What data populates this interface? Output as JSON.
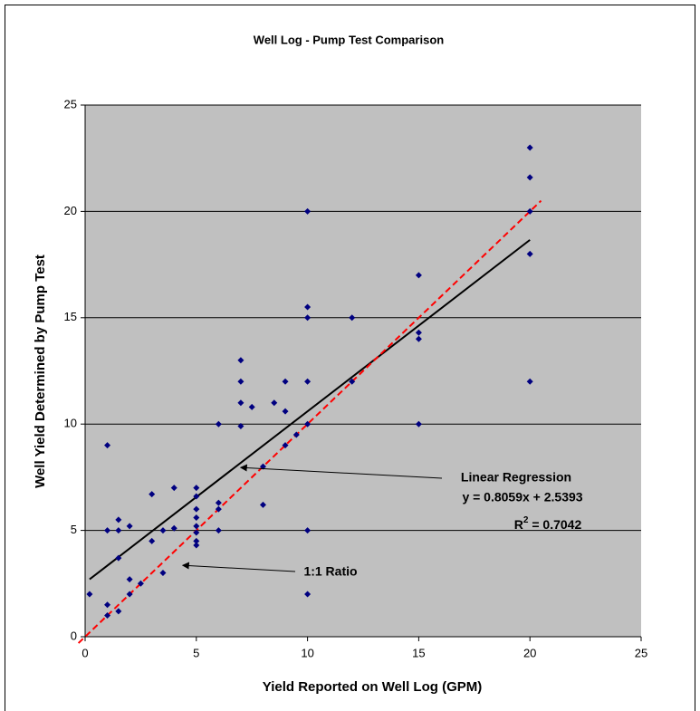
{
  "chart_data": {
    "type": "scatter",
    "title": "Well Log - Pump Test Comparison",
    "x_label": "Yield Reported on Well Log (GPM)",
    "y_label": "Well Yield Determined by Pump Test",
    "xlim": [
      0,
      25
    ],
    "xticks": [
      0,
      5,
      10,
      15,
      20,
      25
    ],
    "ylim": [
      0,
      25
    ],
    "yticks": [
      0,
      5,
      10,
      15,
      20,
      25
    ],
    "grid": true,
    "series": [
      {
        "color": "#000080",
        "x": [
          0.2,
          1,
          1,
          1,
          1,
          1.5,
          1.5,
          1.5,
          1.5,
          2,
          2,
          2,
          2.5,
          3,
          3,
          3.5,
          3.5,
          4,
          4,
          5,
          5,
          5,
          5,
          5,
          5,
          5,
          5,
          6,
          6,
          6,
          6,
          7,
          7,
          7,
          7,
          7.5,
          8,
          8,
          8.5,
          9,
          9,
          9,
          9.5,
          10,
          10,
          10,
          10,
          10,
          10,
          10,
          12,
          12,
          15,
          15,
          15,
          15,
          20,
          20,
          20,
          20,
          20
        ],
        "values": [
          2,
          9,
          5,
          1.5,
          1,
          5.5,
          5,
          3.7,
          1.2,
          5.2,
          2.7,
          2,
          2.5,
          6.7,
          4.5,
          5,
          3,
          7,
          5.1,
          7,
          6.6,
          6,
          5.6,
          5.2,
          4.9,
          4.5,
          4.3,
          10,
          6.3,
          6,
          5,
          13,
          12,
          11,
          9.9,
          10.8,
          8,
          6.2,
          11,
          12,
          10.6,
          9,
          9.5,
          20,
          15.5,
          15,
          12,
          10,
          5,
          2,
          15,
          12,
          17,
          14.3,
          14,
          10,
          23,
          21.6,
          20,
          18,
          12
        ]
      }
    ],
    "trend_line": {
      "color": "#000000",
      "x": [
        0.2,
        20
      ],
      "y": [
        2.7,
        18.66
      ]
    },
    "ratio_line": {
      "color": "#ff0000",
      "x": [
        -0.3,
        20.5
      ],
      "y": [
        -0.3,
        20.5
      ]
    },
    "annotations": {
      "regression_title": "Linear Regression",
      "regression_equation": "y = 0.8059x + 2.5393",
      "r2": {
        "base": "R",
        "sup": "2",
        "rest": " = 0.7042"
      },
      "ratio": "1:1 Ratio"
    }
  }
}
